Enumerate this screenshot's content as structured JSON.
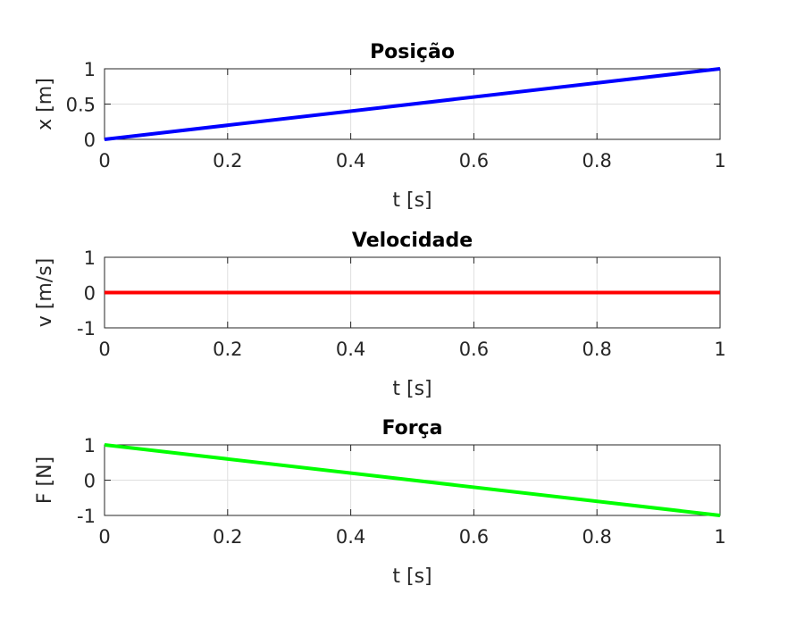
{
  "chart_data": [
    {
      "type": "line",
      "title": "Posição",
      "xlabel": "t [s]",
      "ylabel": "x [m]",
      "xlim": [
        0,
        1
      ],
      "ylim": [
        0,
        1
      ],
      "xticks": [
        "0",
        "0.2",
        "0.4",
        "0.6",
        "0.8",
        "1"
      ],
      "yticks": [
        "0",
        "0.5",
        "1"
      ],
      "grid": true,
      "series": [
        {
          "color": "#0000ff",
          "x": [
            0,
            1
          ],
          "y": [
            0,
            1
          ]
        }
      ]
    },
    {
      "type": "line",
      "title": "Velocidade",
      "xlabel": "t [s]",
      "ylabel": "v [m/s]",
      "xlim": [
        0,
        1
      ],
      "ylim": [
        -1,
        1
      ],
      "xticks": [
        "0",
        "0.2",
        "0.4",
        "0.6",
        "0.8",
        "1"
      ],
      "yticks": [
        "-1",
        "0",
        "1"
      ],
      "grid": true,
      "series": [
        {
          "color": "#ff0000",
          "x": [
            0,
            1
          ],
          "y": [
            0,
            0
          ]
        }
      ]
    },
    {
      "type": "line",
      "title": "Força",
      "xlabel": "t [s]",
      "ylabel": "F [N]",
      "xlim": [
        0,
        1
      ],
      "ylim": [
        -1,
        1
      ],
      "xticks": [
        "0",
        "0.2",
        "0.4",
        "0.6",
        "0.8",
        "1"
      ],
      "yticks": [
        "-1",
        "0",
        "1"
      ],
      "grid": true,
      "series": [
        {
          "color": "#00ff00",
          "x": [
            0,
            1
          ],
          "y": [
            1,
            -1
          ]
        }
      ]
    }
  ]
}
